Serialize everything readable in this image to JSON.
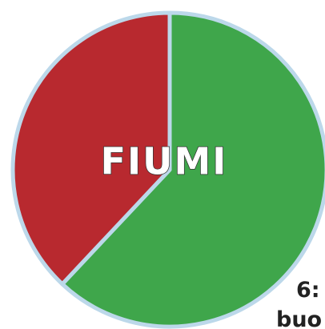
{
  "chart_data": {
    "type": "pie",
    "title": "FIUMI",
    "categories": [
      null,
      null
    ],
    "values": [
      62,
      38
    ],
    "colors": [
      "#3fa64b",
      "#b8292f"
    ],
    "annotations": [
      "6:",
      "buo"
    ]
  }
}
